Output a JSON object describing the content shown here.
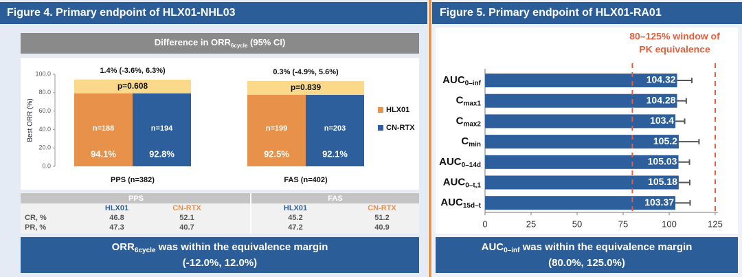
{
  "chart_data": [
    {
      "type": "bar",
      "orientation": "vertical",
      "title": "Figure 4. Primary endpoint of HLX01-NHL03",
      "subtitle_parts": [
        "Difference in ORR",
        "6cycle",
        " (95% CI)"
      ],
      "ylabel": "Best ORR (%)",
      "categories": [
        "PPS (n=382)",
        "FAS (n=402)"
      ],
      "series": [
        {
          "name": "HLX01",
          "color": "#e8914a",
          "values": [
            94.1,
            92.5
          ],
          "value_labels": [
            "94.1%",
            "92.5%"
          ],
          "n_labels": [
            "n=188",
            "n=199"
          ]
        },
        {
          "name": "CN-RTX",
          "color": "#2d5f9c",
          "values": [
            92.8,
            92.1
          ],
          "value_labels": [
            "92.8%",
            "92.1%"
          ],
          "n_labels": [
            "n=194",
            "n=203"
          ]
        }
      ],
      "differences": [
        "1.4% (-3.6%, 6.3%)",
        "0.3% (-4.9%, 5.6%)"
      ],
      "p_values": [
        "p=0.608",
        "p=0.839"
      ],
      "highlight_color": "#fbd98a",
      "ylim": [
        0,
        100
      ],
      "yticks": [
        {
          "value": 0,
          "label": "0.0"
        },
        {
          "value": 20,
          "label": "20.0"
        },
        {
          "value": 40,
          "label": "40.0"
        },
        {
          "value": 60,
          "label": "60.0"
        },
        {
          "value": 80,
          "label": "80.0"
        },
        {
          "value": 100,
          "label": "100.0"
        }
      ],
      "legend": "right",
      "grid": false
    },
    {
      "type": "bar",
      "orientation": "horizontal",
      "title": "Figure 5. Primary endpoint of HLX01-RA01",
      "categories": [
        "AUC",
        "C",
        "C",
        "C",
        "AUC",
        "AUC",
        "AUC"
      ],
      "category_subscripts": [
        "0–inf",
        "max1",
        "max2",
        "min",
        "0–14d",
        "0–t,1",
        "15d–t"
      ],
      "color": "#2d5f9c",
      "values": [
        104.32,
        104.28,
        103.4,
        105.2,
        105.03,
        105.18,
        103.37
      ],
      "errors": [
        8,
        5,
        5,
        11,
        6,
        6,
        8
      ],
      "error_color": "#555555",
      "reference_lines": [
        80,
        125
      ],
      "reference_color": "#e2603f",
      "annotation": [
        "80–125% window of",
        "PK equivalence"
      ],
      "xlim": [
        0,
        125
      ],
      "xticks": [
        0,
        25,
        50,
        75,
        100,
        125
      ],
      "grid": false
    }
  ],
  "table": {
    "groups": [
      "PPS",
      "FAS"
    ],
    "columns": [
      "HLX01",
      "CN-RTX",
      "HLX01",
      "CN-RTX"
    ],
    "rows": [
      [
        "CR, %",
        46.8,
        52.1,
        45.2,
        51.2
      ],
      [
        "PR, %",
        47.3,
        40.7,
        47.2,
        40.9
      ]
    ]
  },
  "conclusions": [
    {
      "parts": [
        "ORR",
        "6cycle",
        " was within the equivalence margin"
      ],
      "margin": "(-12.0%, 12.0%)"
    },
    {
      "parts": [
        "AUC",
        "0–inf",
        " was within the equivalence margin"
      ],
      "margin": "(80.0%, 125.0%)"
    }
  ]
}
